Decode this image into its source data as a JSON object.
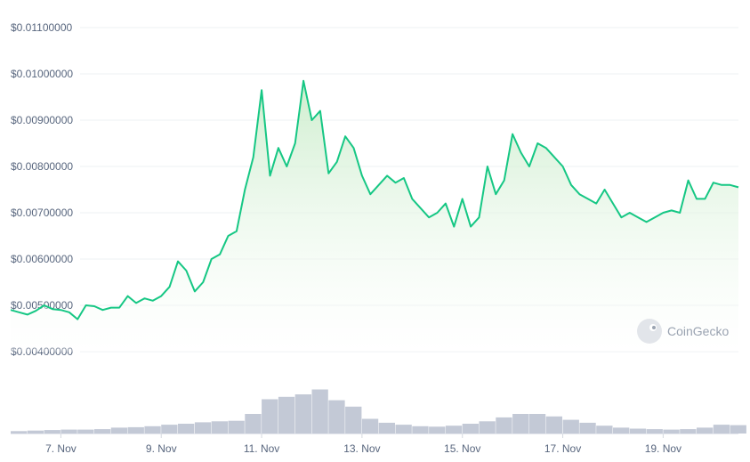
{
  "watermark": {
    "text": "CoinGecko",
    "icon": "gecko-logo-icon"
  },
  "colors": {
    "line": "#16c784",
    "fill_top": "#c9ecc9",
    "fill_bottom": "#ffffff",
    "volume": "#c3c9d6",
    "grid": "#eef0f3",
    "axis_text": "#58667e"
  },
  "chart_data": [
    {
      "type": "area",
      "xlim": [
        "2023-11-06T00:00",
        "2023-11-20T12:00"
      ],
      "ylim": [
        0.004,
        0.011
      ],
      "yticks": [
        "$0.01100000",
        "$0.01000000",
        "$0.00900000",
        "$0.00800000",
        "$0.00700000",
        "$0.00600000",
        "$0.00500000",
        "$0.00400000"
      ],
      "ytick_values": [
        0.011,
        0.01,
        0.009,
        0.008,
        0.007,
        0.006,
        0.005,
        0.004
      ],
      "grid": true,
      "legend": "none",
      "points": [
        [
          "2023-11-06T00:00",
          0.0049
        ],
        [
          "2023-11-06T04:00",
          0.00485
        ],
        [
          "2023-11-06T08:00",
          0.0048
        ],
        [
          "2023-11-06T12:00",
          0.00488
        ],
        [
          "2023-11-06T16:00",
          0.005
        ],
        [
          "2023-11-06T20:00",
          0.00492
        ],
        [
          "2023-11-07T00:00",
          0.0049
        ],
        [
          "2023-11-07T04:00",
          0.00485
        ],
        [
          "2023-11-07T08:00",
          0.0047
        ],
        [
          "2023-11-07T12:00",
          0.005
        ],
        [
          "2023-11-07T16:00",
          0.00498
        ],
        [
          "2023-11-07T20:00",
          0.0049
        ],
        [
          "2023-11-08T00:00",
          0.00495
        ],
        [
          "2023-11-08T04:00",
          0.00495
        ],
        [
          "2023-11-08T08:00",
          0.0052
        ],
        [
          "2023-11-08T12:00",
          0.00505
        ],
        [
          "2023-11-08T16:00",
          0.00515
        ],
        [
          "2023-11-08T20:00",
          0.0051
        ],
        [
          "2023-11-09T00:00",
          0.0052
        ],
        [
          "2023-11-09T04:00",
          0.0054
        ],
        [
          "2023-11-09T08:00",
          0.00595
        ],
        [
          "2023-11-09T12:00",
          0.00575
        ],
        [
          "2023-11-09T16:00",
          0.0053
        ],
        [
          "2023-11-09T20:00",
          0.0055
        ],
        [
          "2023-11-10T00:00",
          0.006
        ],
        [
          "2023-11-10T04:00",
          0.0061
        ],
        [
          "2023-11-10T08:00",
          0.0065
        ],
        [
          "2023-11-10T12:00",
          0.0066
        ],
        [
          "2023-11-10T16:00",
          0.0075
        ],
        [
          "2023-11-10T20:00",
          0.0082
        ],
        [
          "2023-11-11T00:00",
          0.00965
        ],
        [
          "2023-11-11T04:00",
          0.0078
        ],
        [
          "2023-11-11T08:00",
          0.0084
        ],
        [
          "2023-11-11T12:00",
          0.008
        ],
        [
          "2023-11-11T16:00",
          0.0085
        ],
        [
          "2023-11-11T20:00",
          0.00985
        ],
        [
          "2023-11-12T00:00",
          0.009
        ],
        [
          "2023-11-12T04:00",
          0.0092
        ],
        [
          "2023-11-12T08:00",
          0.00785
        ],
        [
          "2023-11-12T12:00",
          0.0081
        ],
        [
          "2023-11-12T16:00",
          0.00865
        ],
        [
          "2023-11-12T20:00",
          0.0084
        ],
        [
          "2023-11-13T00:00",
          0.0078
        ],
        [
          "2023-11-13T04:00",
          0.0074
        ],
        [
          "2023-11-13T08:00",
          0.0076
        ],
        [
          "2023-11-13T12:00",
          0.0078
        ],
        [
          "2023-11-13T16:00",
          0.00765
        ],
        [
          "2023-11-13T20:00",
          0.00775
        ],
        [
          "2023-11-14T00:00",
          0.0073
        ],
        [
          "2023-11-14T04:00",
          0.0071
        ],
        [
          "2023-11-14T08:00",
          0.0069
        ],
        [
          "2023-11-14T12:00",
          0.007
        ],
        [
          "2023-11-14T16:00",
          0.0072
        ],
        [
          "2023-11-14T20:00",
          0.0067
        ],
        [
          "2023-11-15T00:00",
          0.0073
        ],
        [
          "2023-11-15T04:00",
          0.0067
        ],
        [
          "2023-11-15T08:00",
          0.0069
        ],
        [
          "2023-11-15T12:00",
          0.008
        ],
        [
          "2023-11-15T16:00",
          0.0074
        ],
        [
          "2023-11-15T20:00",
          0.0077
        ],
        [
          "2023-11-16T00:00",
          0.0087
        ],
        [
          "2023-11-16T04:00",
          0.0083
        ],
        [
          "2023-11-16T08:00",
          0.008
        ],
        [
          "2023-11-16T12:00",
          0.0085
        ],
        [
          "2023-11-16T16:00",
          0.0084
        ],
        [
          "2023-11-16T20:00",
          0.0082
        ],
        [
          "2023-11-17T00:00",
          0.008
        ],
        [
          "2023-11-17T04:00",
          0.0076
        ],
        [
          "2023-11-17T08:00",
          0.0074
        ],
        [
          "2023-11-17T12:00",
          0.0073
        ],
        [
          "2023-11-17T16:00",
          0.0072
        ],
        [
          "2023-11-17T20:00",
          0.0075
        ],
        [
          "2023-11-18T00:00",
          0.0072
        ],
        [
          "2023-11-18T04:00",
          0.0069
        ],
        [
          "2023-11-18T08:00",
          0.007
        ],
        [
          "2023-11-18T12:00",
          0.0069
        ],
        [
          "2023-11-18T16:00",
          0.0068
        ],
        [
          "2023-11-18T20:00",
          0.0069
        ],
        [
          "2023-11-19T00:00",
          0.007
        ],
        [
          "2023-11-19T04:00",
          0.00705
        ],
        [
          "2023-11-19T08:00",
          0.007
        ],
        [
          "2023-11-19T12:00",
          0.0077
        ],
        [
          "2023-11-19T16:00",
          0.0073
        ],
        [
          "2023-11-19T20:00",
          0.0073
        ],
        [
          "2023-11-20T00:00",
          0.00765
        ],
        [
          "2023-11-20T04:00",
          0.0076
        ],
        [
          "2023-11-20T08:00",
          0.0076
        ],
        [
          "2023-11-20T12:00",
          0.00755
        ]
      ]
    },
    {
      "type": "bar",
      "series_role": "volume",
      "xlim": [
        "2023-11-06T00:00",
        "2023-11-20T12:00"
      ],
      "ylim": [
        0,
        1
      ],
      "points": [
        [
          "2023-11-06T00:00",
          0.05
        ],
        [
          "2023-11-06T08:00",
          0.06
        ],
        [
          "2023-11-06T16:00",
          0.07
        ],
        [
          "2023-11-07T00:00",
          0.08
        ],
        [
          "2023-11-07T08:00",
          0.08
        ],
        [
          "2023-11-07T16:00",
          0.09
        ],
        [
          "2023-11-08T00:00",
          0.12
        ],
        [
          "2023-11-08T08:00",
          0.13
        ],
        [
          "2023-11-08T16:00",
          0.15
        ],
        [
          "2023-11-09T00:00",
          0.18
        ],
        [
          "2023-11-09T08:00",
          0.2
        ],
        [
          "2023-11-09T16:00",
          0.23
        ],
        [
          "2023-11-10T00:00",
          0.25
        ],
        [
          "2023-11-10T08:00",
          0.26
        ],
        [
          "2023-11-10T16:00",
          0.4
        ],
        [
          "2023-11-11T00:00",
          0.7
        ],
        [
          "2023-11-11T08:00",
          0.75
        ],
        [
          "2023-11-11T16:00",
          0.8
        ],
        [
          "2023-11-12T00:00",
          0.9
        ],
        [
          "2023-11-12T08:00",
          0.68
        ],
        [
          "2023-11-12T16:00",
          0.55
        ],
        [
          "2023-11-13T00:00",
          0.3
        ],
        [
          "2023-11-13T08:00",
          0.22
        ],
        [
          "2023-11-13T16:00",
          0.18
        ],
        [
          "2023-11-14T00:00",
          0.15
        ],
        [
          "2023-11-14T08:00",
          0.14
        ],
        [
          "2023-11-14T16:00",
          0.16
        ],
        [
          "2023-11-15T00:00",
          0.2
        ],
        [
          "2023-11-15T08:00",
          0.25
        ],
        [
          "2023-11-15T16:00",
          0.33
        ],
        [
          "2023-11-16T00:00",
          0.4
        ],
        [
          "2023-11-16T08:00",
          0.4
        ],
        [
          "2023-11-16T16:00",
          0.35
        ],
        [
          "2023-11-17T00:00",
          0.28
        ],
        [
          "2023-11-17T08:00",
          0.22
        ],
        [
          "2023-11-17T16:00",
          0.16
        ],
        [
          "2023-11-18T00:00",
          0.12
        ],
        [
          "2023-11-18T08:00",
          0.1
        ],
        [
          "2023-11-18T16:00",
          0.09
        ],
        [
          "2023-11-19T00:00",
          0.08
        ],
        [
          "2023-11-19T08:00",
          0.09
        ],
        [
          "2023-11-19T16:00",
          0.12
        ],
        [
          "2023-11-20T00:00",
          0.18
        ],
        [
          "2023-11-20T08:00",
          0.17
        ]
      ]
    }
  ],
  "xticks": [
    {
      "label": "7. Nov",
      "at": "2023-11-07T00:00"
    },
    {
      "label": "9. Nov",
      "at": "2023-11-09T00:00"
    },
    {
      "label": "11. Nov",
      "at": "2023-11-11T00:00"
    },
    {
      "label": "13. Nov",
      "at": "2023-11-13T00:00"
    },
    {
      "label": "15. Nov",
      "at": "2023-11-15T00:00"
    },
    {
      "label": "17. Nov",
      "at": "2023-11-17T00:00"
    },
    {
      "label": "19. Nov",
      "at": "2023-11-19T00:00"
    }
  ]
}
